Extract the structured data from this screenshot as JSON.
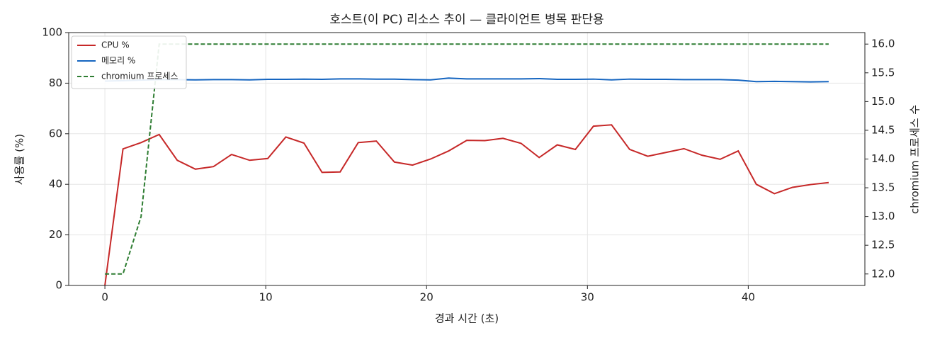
{
  "chart_data": {
    "type": "line",
    "title": "호스트(이 PC) 리소스 추이 — 클라이언트 병목 판단용",
    "x_label": "경과 시간 (초)",
    "y_label": "사용률 (%)",
    "y2_label": "chromium 프로세스 수",
    "x": [
      0,
      1.125,
      2.25,
      3.375,
      4.5,
      5.625,
      6.75,
      7.875,
      9,
      10.125,
      11.25,
      12.375,
      13.5,
      14.625,
      15.75,
      16.875,
      18,
      19.125,
      20.25,
      21.375,
      22.5,
      23.625,
      24.75,
      25.875,
      27,
      28.125,
      29.25,
      30.375,
      31.5,
      32.625,
      33.75,
      34.875,
      36,
      37.125,
      38.25,
      39.375,
      40.5,
      41.625,
      42.75,
      43.875,
      45
    ],
    "series": [
      {
        "name": "CPU %",
        "color": "#c62828",
        "style": "solid",
        "values": [
          0,
          54,
          56.5,
          59.7,
          49.5,
          46,
          47,
          51.8,
          49.5,
          50.2,
          58.7,
          56.3,
          44.7,
          44.9,
          56.5,
          57.1,
          48.8,
          47.6,
          50,
          53.2,
          57.4,
          57.3,
          58.2,
          56.2,
          50.6,
          55.6,
          53.8,
          63,
          63.5,
          53.8,
          51.1,
          52.6,
          54.1,
          51.5,
          49.9,
          53.2,
          40,
          36.3,
          38.8,
          39.9,
          40.7
        ]
      },
      {
        "name": "메모리 %",
        "color": "#1565c0",
        "style": "solid",
        "values": [
          80.8,
          81,
          81.2,
          81.4,
          81.4,
          81.3,
          81.4,
          81.4,
          81.3,
          81.5,
          81.5,
          81.6,
          81.5,
          81.7,
          81.7,
          81.6,
          81.6,
          81.4,
          81.3,
          82,
          81.7,
          81.7,
          81.7,
          81.7,
          81.8,
          81.5,
          81.5,
          81.6,
          81.3,
          81.6,
          81.5,
          81.5,
          81.4,
          81.4,
          81.4,
          81.2,
          80.6,
          80.7,
          80.6,
          80.5,
          80.6
        ]
      },
      {
        "name": "chromium 프로세스",
        "color": "#2e7d32",
        "style": "dashed",
        "axis": "y2",
        "values": [
          12,
          12,
          13,
          16,
          16,
          16,
          16,
          16,
          16,
          16,
          16,
          16,
          16,
          16,
          16,
          16,
          16,
          16,
          16,
          16,
          16,
          16,
          16,
          16,
          16,
          16,
          16,
          16,
          16,
          16,
          16,
          16,
          16,
          16,
          16,
          16,
          16,
          16,
          16,
          16,
          16
        ]
      }
    ],
    "xlim": [
      -2.25,
      47.25
    ],
    "xticks": [
      0,
      10,
      20,
      30,
      40
    ],
    "ylim": [
      0,
      100
    ],
    "yticks": [
      0,
      20,
      40,
      60,
      80,
      100
    ],
    "y2lim": [
      11.8,
      16.2
    ],
    "y2ticks": [
      {
        "value": 12,
        "label": "12.0"
      },
      {
        "value": 12.5,
        "label": "12.5"
      },
      {
        "value": 13,
        "label": "13.0"
      },
      {
        "value": 13.5,
        "label": "13.5"
      },
      {
        "value": 14,
        "label": "14.0"
      },
      {
        "value": 14.5,
        "label": "14.5"
      },
      {
        "value": 15,
        "label": "15.0"
      },
      {
        "value": 15.5,
        "label": "15.5"
      },
      {
        "value": 16,
        "label": "16.0"
      }
    ],
    "grid": true,
    "legend": "upper-left"
  }
}
